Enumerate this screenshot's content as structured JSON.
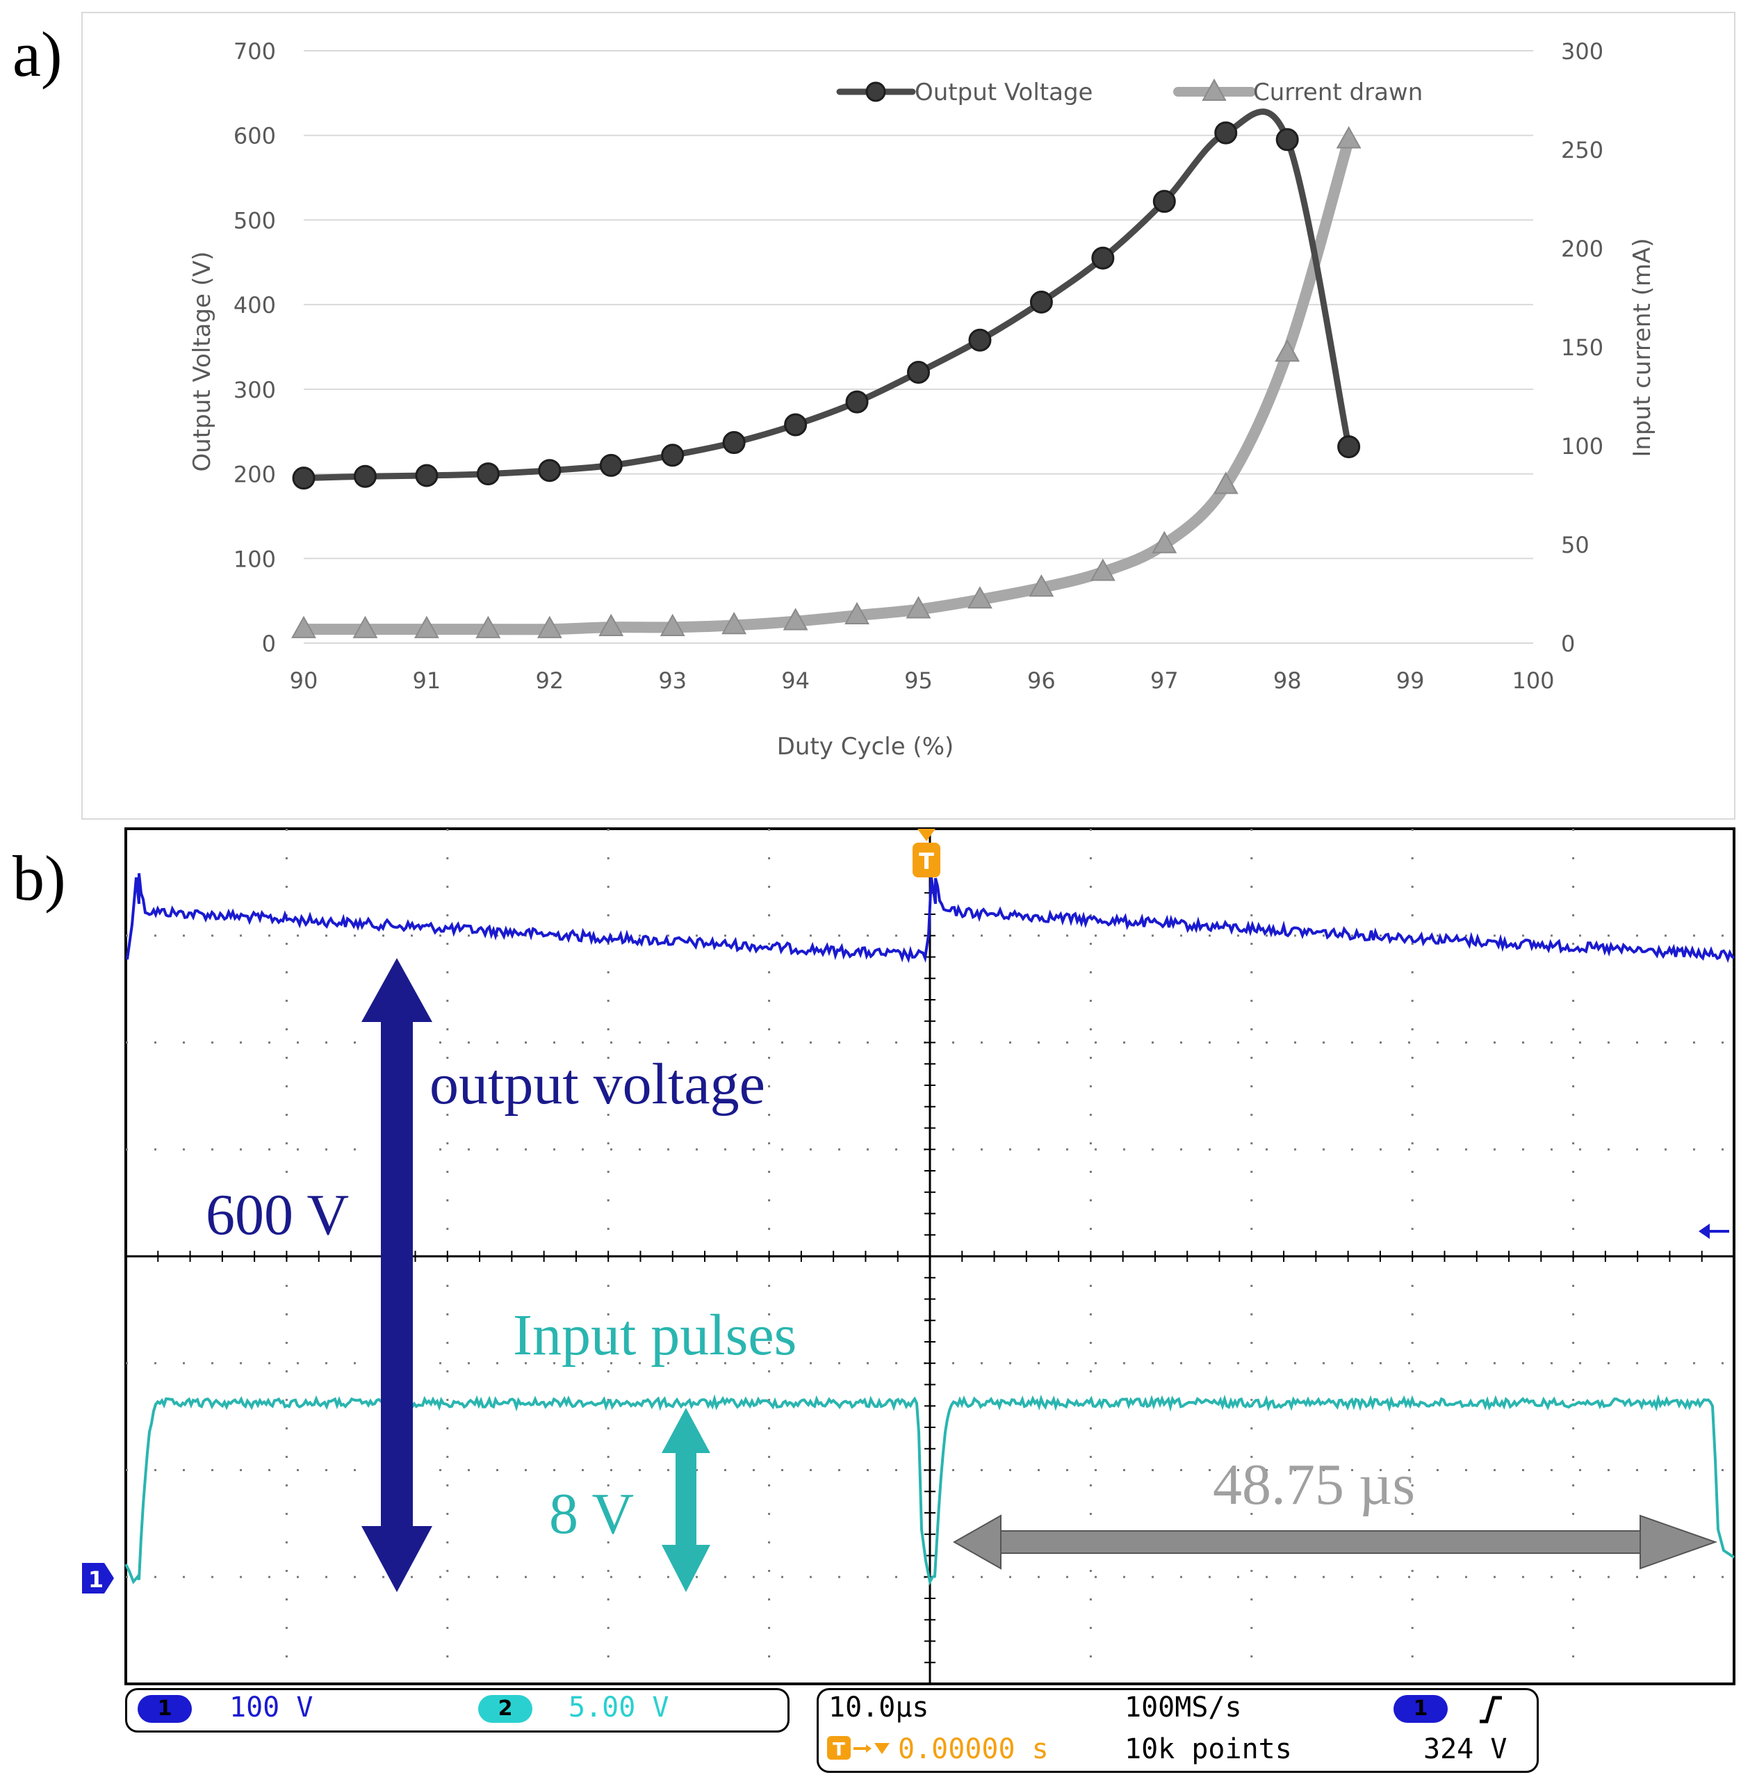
{
  "panel_labels": {
    "a": "a)",
    "b": "b)"
  },
  "chart_data": [
    {
      "type": "line",
      "id": "a",
      "xlabel": "Duty Cycle  (%)",
      "ylabel": "Output Voltage (V)",
      "ylabel_right": "Input current (mA)",
      "xlim": [
        90,
        100
      ],
      "ylim": [
        0,
        700
      ],
      "ylim_right": [
        0,
        300
      ],
      "x_ticks": [
        "90",
        "91",
        "92",
        "93",
        "94",
        "95",
        "96",
        "97",
        "98",
        "99",
        "100"
      ],
      "y_ticks": [
        "0",
        "100",
        "200",
        "300",
        "400",
        "500",
        "600",
        "700"
      ],
      "y_ticks_right": [
        "0",
        "50",
        "100",
        "150",
        "200",
        "250",
        "300"
      ],
      "grid": "horizontal",
      "legend_position": "top-right",
      "series": [
        {
          "name": "Output Voltage",
          "axis": "left",
          "color": "#4a4a4a",
          "marker": "circle",
          "x": [
            90,
            90.5,
            91,
            91.5,
            92,
            92.5,
            93,
            93.5,
            94,
            94.5,
            95,
            95.5,
            96,
            96.5,
            97,
            97.5,
            98,
            98.5
          ],
          "y": [
            195,
            197,
            198,
            200,
            204,
            210,
            222,
            237,
            258,
            285,
            320,
            358,
            403,
            455,
            522,
            603,
            595,
            232
          ]
        },
        {
          "name": "Current drawn",
          "axis": "right",
          "color": "#a8a8a8",
          "marker": "triangle",
          "x": [
            90,
            90.5,
            91,
            91.5,
            92,
            92.5,
            93,
            93.5,
            94,
            94.5,
            95,
            95.5,
            96,
            96.5,
            97,
            97.5,
            98,
            98.5
          ],
          "y": [
            7,
            7,
            7,
            7,
            7,
            8,
            8,
            9,
            11,
            14,
            17,
            22,
            28,
            36,
            50,
            80,
            147,
            255
          ]
        }
      ]
    },
    {
      "type": "line",
      "id": "b",
      "title": "",
      "annotations": {
        "output_voltage_label": "output voltage",
        "output_voltage_value": "600 V",
        "input_pulses_label": "Input pulses",
        "input_pulses_value": "8 V",
        "period_label": "48.75 µs"
      },
      "series": [
        {
          "name": "output voltage",
          "color": "#1a1aa0"
        },
        {
          "name": "Input pulses",
          "color": "#2ab5b0"
        }
      ],
      "scope_status": {
        "ch1_marker": "1",
        "ch1_scale": "100 V",
        "ch2_marker": "2",
        "ch2_scale": "5.00 V",
        "timebase": "10.0µs",
        "sample_rate": "100MS/s",
        "trigger_ch": "1",
        "trigger_edge": "rising",
        "trigger_position": "0.00000 s",
        "record_length": "10k points",
        "trigger_level": "324 V",
        "trigger_marker": "T"
      }
    }
  ],
  "colors": {
    "accent_dark_blue": "#1a1a8c",
    "accent_teal": "#2ab5b0",
    "scope_blue": "#1a1ad0",
    "trigger_orange": "#f5a011",
    "arrow_gray": "#8c8c8c",
    "text_gray": "#a0a0a0"
  }
}
